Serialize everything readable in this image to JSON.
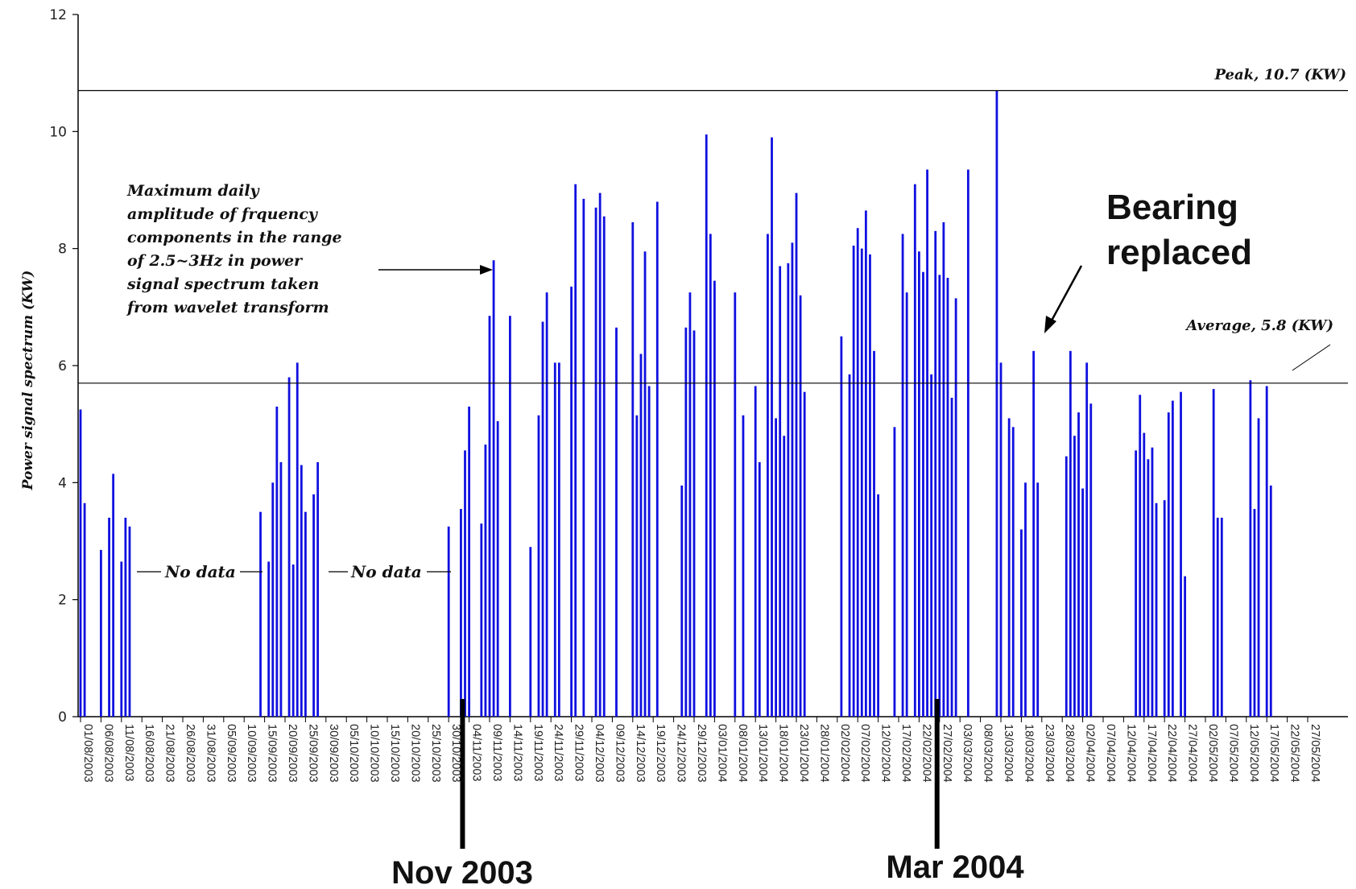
{
  "chart_data": {
    "type": "bar",
    "ylabel": "Power signal spectrum (KW)",
    "ylim": [
      0,
      12
    ],
    "yticks": [
      0,
      2,
      4,
      6,
      8,
      10,
      12
    ],
    "grid": false,
    "date_range": [
      "01/08/2003",
      "31/05/2004"
    ],
    "x_tick_labels": [
      "01/08/2003",
      "06/08/2003",
      "11/08/2003",
      "16/08/2003",
      "21/08/2003",
      "26/08/2003",
      "31/08/2003",
      "05/09/2003",
      "10/09/2003",
      "15/09/2003",
      "20/09/2003",
      "25/09/2003",
      "30/09/2003",
      "05/10/2003",
      "10/10/2003",
      "15/10/2003",
      "20/10/2003",
      "25/10/2003",
      "30/10/2003",
      "04/11/2003",
      "09/11/2003",
      "14/11/2003",
      "19/11/2003",
      "24/11/2003",
      "29/11/2003",
      "04/12/2003",
      "09/12/2003",
      "14/12/2003",
      "19/12/2003",
      "24/12/2003",
      "29/12/2003",
      "03/01/2004",
      "08/01/2004",
      "13/01/2004",
      "18/01/2004",
      "23/01/2004",
      "28/01/2004",
      "02/02/2004",
      "07/02/2004",
      "12/02/2004",
      "17/02/2004",
      "22/02/2004",
      "27/02/2004",
      "03/03/2004",
      "08/03/2004",
      "13/03/2004",
      "18/03/2004",
      "23/03/2004",
      "28/03/2004",
      "02/04/2004",
      "07/04/2004",
      "12/04/2004",
      "17/04/2004",
      "22/04/2004",
      "27/04/2004",
      "02/05/2004",
      "07/05/2004",
      "12/05/2004",
      "17/05/2004",
      "22/05/2004",
      "27/05/2004"
    ],
    "series": [
      {
        "color": "#1010e0",
        "points": [
          [
            "01/08/2003",
            5.25
          ],
          [
            "02/08/2003",
            3.65
          ],
          [
            "06/08/2003",
            2.85
          ],
          [
            "08/08/2003",
            3.4
          ],
          [
            "09/08/2003",
            4.15
          ],
          [
            "11/08/2003",
            2.65
          ],
          [
            "12/08/2003",
            3.4
          ],
          [
            "13/08/2003",
            3.25
          ],
          [
            "14/09/2003",
            3.5
          ],
          [
            "16/09/2003",
            2.65
          ],
          [
            "17/09/2003",
            4.0
          ],
          [
            "18/09/2003",
            5.3
          ],
          [
            "19/09/2003",
            4.35
          ],
          [
            "21/09/2003",
            5.8
          ],
          [
            "22/09/2003",
            2.6
          ],
          [
            "23/09/2003",
            6.05
          ],
          [
            "24/09/2003",
            4.3
          ],
          [
            "25/09/2003",
            3.5
          ],
          [
            "27/09/2003",
            3.8
          ],
          [
            "28/09/2003",
            4.35
          ],
          [
            "30/10/2003",
            3.25
          ],
          [
            "02/11/2003",
            3.55
          ],
          [
            "03/11/2003",
            4.55
          ],
          [
            "04/11/2003",
            5.3
          ],
          [
            "07/11/2003",
            3.3
          ],
          [
            "08/11/2003",
            4.65
          ],
          [
            "09/11/2003",
            6.85
          ],
          [
            "10/11/2003",
            7.8
          ],
          [
            "11/11/2003",
            5.05
          ],
          [
            "14/11/2003",
            6.85
          ],
          [
            "19/11/2003",
            2.9
          ],
          [
            "21/11/2003",
            5.15
          ],
          [
            "22/11/2003",
            6.75
          ],
          [
            "23/11/2003",
            7.25
          ],
          [
            "25/11/2003",
            6.05
          ],
          [
            "26/11/2003",
            6.05
          ],
          [
            "29/11/2003",
            7.35
          ],
          [
            "30/11/2003",
            9.1
          ],
          [
            "02/12/2003",
            8.85
          ],
          [
            "05/12/2003",
            8.7
          ],
          [
            "06/12/2003",
            8.95
          ],
          [
            "07/12/2003",
            8.55
          ],
          [
            "10/12/2003",
            6.65
          ],
          [
            "14/12/2003",
            8.45
          ],
          [
            "15/12/2003",
            5.15
          ],
          [
            "16/12/2003",
            6.2
          ],
          [
            "17/12/2003",
            7.95
          ],
          [
            "18/12/2003",
            5.65
          ],
          [
            "20/12/2003",
            8.8
          ],
          [
            "26/12/2003",
            3.95
          ],
          [
            "27/12/2003",
            6.65
          ],
          [
            "28/12/2003",
            7.25
          ],
          [
            "29/12/2003",
            6.6
          ],
          [
            "01/01/2004",
            9.95
          ],
          [
            "02/01/2004",
            8.25
          ],
          [
            "03/01/2004",
            7.45
          ],
          [
            "08/01/2004",
            7.25
          ],
          [
            "10/01/2004",
            5.15
          ],
          [
            "13/01/2004",
            5.65
          ],
          [
            "14/01/2004",
            4.35
          ],
          [
            "16/01/2004",
            8.25
          ],
          [
            "17/01/2004",
            9.9
          ],
          [
            "18/01/2004",
            5.1
          ],
          [
            "19/01/2004",
            7.7
          ],
          [
            "20/01/2004",
            4.8
          ],
          [
            "21/01/2004",
            7.75
          ],
          [
            "22/01/2004",
            8.1
          ],
          [
            "23/01/2004",
            8.95
          ],
          [
            "24/01/2004",
            7.2
          ],
          [
            "25/01/2004",
            5.55
          ],
          [
            "03/02/2004",
            6.5
          ],
          [
            "05/02/2004",
            5.85
          ],
          [
            "06/02/2004",
            8.05
          ],
          [
            "07/02/2004",
            8.35
          ],
          [
            "08/02/2004",
            8.0
          ],
          [
            "09/02/2004",
            8.65
          ],
          [
            "10/02/2004",
            7.9
          ],
          [
            "11/02/2004",
            6.25
          ],
          [
            "12/02/2004",
            3.8
          ],
          [
            "16/02/2004",
            4.95
          ],
          [
            "18/02/2004",
            8.25
          ],
          [
            "19/02/2004",
            7.25
          ],
          [
            "21/02/2004",
            9.1
          ],
          [
            "22/02/2004",
            7.95
          ],
          [
            "23/02/2004",
            7.6
          ],
          [
            "24/02/2004",
            9.35
          ],
          [
            "25/02/2004",
            5.85
          ],
          [
            "26/02/2004",
            8.3
          ],
          [
            "27/02/2004",
            7.55
          ],
          [
            "28/02/2004",
            8.45
          ],
          [
            "29/02/2004",
            7.5
          ],
          [
            "01/03/2004",
            5.45
          ],
          [
            "02/03/2004",
            7.15
          ],
          [
            "05/03/2004",
            9.35
          ],
          [
            "12/03/2004",
            10.7
          ],
          [
            "13/03/2004",
            6.05
          ],
          [
            "15/03/2004",
            5.1
          ],
          [
            "16/03/2004",
            4.95
          ],
          [
            "18/03/2004",
            3.2
          ],
          [
            "19/03/2004",
            4.0
          ],
          [
            "21/03/2004",
            6.25
          ],
          [
            "22/03/2004",
            4.0
          ],
          [
            "29/03/2004",
            4.45
          ],
          [
            "30/03/2004",
            6.25
          ],
          [
            "31/03/2004",
            4.8
          ],
          [
            "01/04/2004",
            5.2
          ],
          [
            "02/04/2004",
            3.9
          ],
          [
            "03/04/2004",
            6.05
          ],
          [
            "04/04/2004",
            5.35
          ],
          [
            "15/04/2004",
            4.55
          ],
          [
            "16/04/2004",
            5.5
          ],
          [
            "17/04/2004",
            4.85
          ],
          [
            "18/04/2004",
            4.4
          ],
          [
            "19/04/2004",
            4.6
          ],
          [
            "20/04/2004",
            3.65
          ],
          [
            "22/04/2004",
            3.7
          ],
          [
            "23/04/2004",
            5.2
          ],
          [
            "24/04/2004",
            5.4
          ],
          [
            "26/04/2004",
            5.55
          ],
          [
            "27/04/2004",
            2.4
          ],
          [
            "04/05/2004",
            5.6
          ],
          [
            "05/05/2004",
            3.4
          ],
          [
            "06/05/2004",
            3.4
          ],
          [
            "13/05/2004",
            5.75
          ],
          [
            "14/05/2004",
            3.55
          ],
          [
            "15/05/2004",
            5.1
          ],
          [
            "17/05/2004",
            5.65
          ],
          [
            "18/05/2004",
            3.95
          ]
        ]
      }
    ],
    "reference_lines": [
      {
        "label": "Peak, 10.7 (KW)",
        "y": 10.7
      },
      {
        "label": "Average, 5.8 (KW)",
        "y": 5.8
      }
    ],
    "annotations": {
      "description_lines": [
        "Maximum daily",
        "amplitude of frquency",
        "components in the range",
        "of 2.5~3Hz in power",
        "signal spectrum taken",
        "from wavelet transform"
      ],
      "no_data": [
        "No data",
        "No data"
      ],
      "bearing": [
        "Bearing",
        "replaced"
      ],
      "period_markers": [
        {
          "label": "Nov 2003",
          "date": "02/11/2003"
        },
        {
          "label": "Mar 2004",
          "date": "26/02/2004"
        }
      ]
    }
  }
}
